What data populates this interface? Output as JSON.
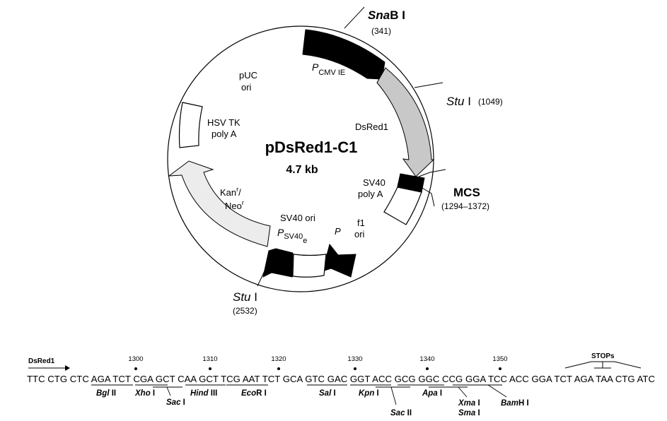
{
  "plasmid": {
    "name": "pDsRed1-C1",
    "size": "4.7 kb"
  },
  "features": {
    "pcmv_p": "P",
    "pcmv_sub": "CMV IE",
    "dsred1": "DsRed1",
    "sv40_polya_1": "SV40",
    "sv40_polya_2": "poly A",
    "f1_ori_1": "f1",
    "f1_ori_2": "ori",
    "p_promoter": "P",
    "sv40ori": "SV40 ori",
    "psv40_p": "P",
    "psv40_sub": "SV40",
    "psv40_e": "e",
    "kan_1": "Kan",
    "kan_sup": "r",
    "kan_slash": "/",
    "neo_2": "Neo",
    "neo_sup": "r",
    "hsv_1": "HSV TK",
    "hsv_2": "poly A",
    "puc_1": "pUC",
    "puc_2": "ori"
  },
  "sites": {
    "snab_italic": "Sna",
    "snab_rest": "B I",
    "snab_pos": "(341)",
    "stu1_italic": "Stu",
    "stu1_rest": " I",
    "stu1_pos": "(1049)",
    "mcs": "MCS",
    "mcs_pos": "(1294–1372)",
    "stu2_italic": "Stu",
    "stu2_rest": " I",
    "stu2_pos": "(2532)"
  },
  "mcs_sequence": {
    "start_label": "DsRed1",
    "sequence": "TTC CTG CTC AGA TCT CGA GCT CAA GCT TCG AAT TCT GCA GTC GAC GGT ACC GCG GGC CCG GGA TCC ACC GGA TCT AGA TAA CTG ATC",
    "ticks": [
      "1300",
      "1310",
      "1320",
      "1330",
      "1340",
      "1350"
    ],
    "stops": "STOPs",
    "enzymes": [
      {
        "italic": "Bgl",
        "rest": " II"
      },
      {
        "italic": "Xho",
        "rest": " I"
      },
      {
        "italic": "Sac",
        "rest": " I"
      },
      {
        "italic": "Hind",
        "rest": " III"
      },
      {
        "italic": "Eco",
        "rest": "R I"
      },
      {
        "italic": "Sal",
        "rest": " I"
      },
      {
        "italic": "Kpn",
        "rest": " I"
      },
      {
        "italic": "Sac",
        "rest": " II"
      },
      {
        "italic": "Apa",
        "rest": " I"
      },
      {
        "italic": "Xma",
        "rest": " I"
      },
      {
        "italic": "Sma",
        "rest": " I"
      },
      {
        "italic": "Bam",
        "rest": "H I"
      }
    ]
  }
}
